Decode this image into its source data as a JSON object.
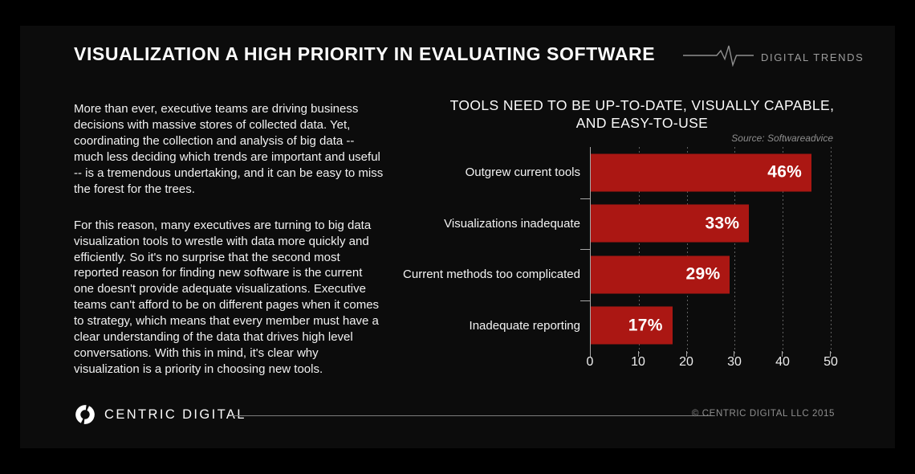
{
  "header": {
    "title": "VISUALIZATION A HIGH PRIORITY IN EVALUATING SOFTWARE",
    "brand": "DIGITAL TRENDS",
    "pulse_icon": "ekg-pulse-line-icon"
  },
  "intro": {
    "paragraphs": [
      "More than ever, executive teams are driving business decisions with massive stores of collected data. Yet, coordinating the collection and analysis of big data -- much less deciding which trends are important and useful -- is a tremendous undertaking, and it can be easy to miss the forest for the trees.",
      "For this reason, many executives are turning to big data visualization tools to wrestle with data more quickly and efficiently. So it's no surprise that the second most reported reason for finding new software is the current one doesn't provide adequate visualizations. Executive teams can't afford to be on different pages when it comes to strategy, which means that every member must have a clear understanding of the data that drives high level conversations. With this in mind, it's clear why visualization is a priority in choosing new tools."
    ]
  },
  "chart_data": {
    "type": "bar",
    "orientation": "horizontal",
    "title": "TOOLS NEED TO BE UP-TO-DATE, VISUALLY CAPABLE, AND EASY-TO-USE",
    "title_lines": [
      "TOOLS NEED TO BE UP-TO-DATE, VISUALLY CAPABLE,",
      "AND EASY-TO-USE"
    ],
    "source": "Source: Softwareadvice",
    "categories": [
      "Outgrew current tools",
      "Visualizations inadequate",
      "Current methods too complicated",
      "Inadequate reporting"
    ],
    "values": [
      46,
      33,
      29,
      17
    ],
    "value_labels": [
      "46%",
      "33%",
      "29%",
      "17%"
    ],
    "xlabel": "",
    "ylabel": "",
    "xlim": [
      0,
      55
    ],
    "xticks": [
      0,
      10,
      20,
      30,
      40,
      50
    ],
    "grid": "vertical-dashed",
    "legend": "none",
    "bar_color": "#ab1713",
    "value_label_color": "#ffffff"
  },
  "footer": {
    "brand": "CENTRIC DIGITAL",
    "logo_icon": "centric-digital-ring-logo",
    "copyright": "© CENTRIC DIGITAL LLC 2015"
  },
  "colors": {
    "background": "#000000",
    "panel": "#0c0c0c",
    "accent_red": "#ab1713",
    "text_primary": "#f1f1f1",
    "text_muted": "#8f8f8f",
    "grid_line": "#616161",
    "axis_line": "#a8a8a8"
  }
}
